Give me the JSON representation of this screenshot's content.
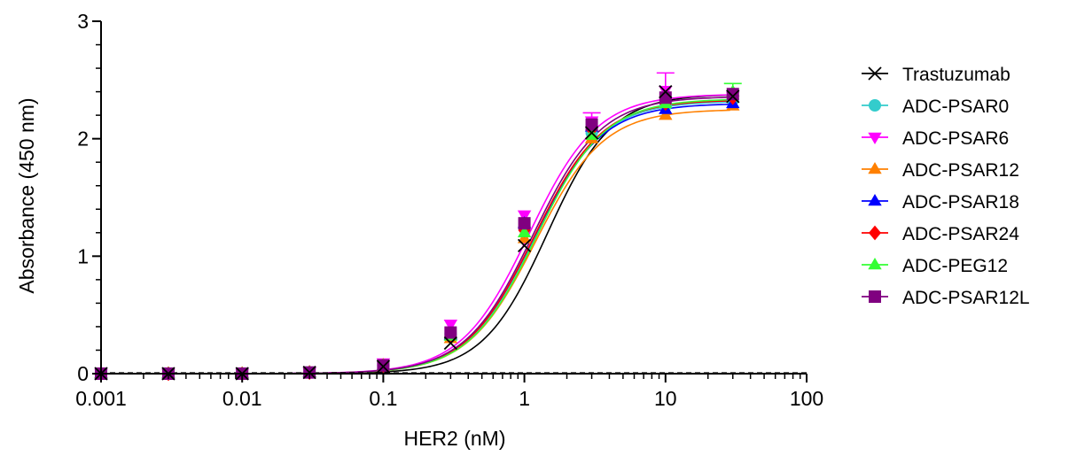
{
  "chart_data": {
    "type": "scatter",
    "title": "",
    "xlabel": "HER2 (nM)",
    "ylabel": "Absorbance (450 nm)",
    "x_scale": "log",
    "xlim": [
      0.001,
      100
    ],
    "ylim": [
      0,
      3
    ],
    "x_ticks": [
      {
        "value": 0.001,
        "label": "0.001"
      },
      {
        "value": 0.01,
        "label": "0.01"
      },
      {
        "value": 0.1,
        "label": "0.1"
      },
      {
        "value": 1,
        "label": "1"
      },
      {
        "value": 10,
        "label": "10"
      },
      {
        "value": 100,
        "label": "100"
      }
    ],
    "y_ticks": [
      {
        "value": 0,
        "label": "0"
      },
      {
        "value": 1,
        "label": "1"
      },
      {
        "value": 2,
        "label": "2"
      },
      {
        "value": 3,
        "label": "3"
      }
    ],
    "grid": false,
    "legend_position": "right",
    "x": [
      0.001,
      0.003,
      0.01,
      0.03,
      0.1,
      0.3,
      1,
      3,
      10,
      30
    ],
    "series": [
      {
        "name": "Trastuzumab",
        "color": "#000000",
        "marker": "x",
        "values": [
          0,
          0,
          0,
          0.01,
          0.06,
          0.26,
          1.09,
          2.05,
          2.4,
          2.36
        ],
        "fit": {
          "top": 2.38,
          "ec50": 1.45,
          "hill": 1.9
        }
      },
      {
        "name": "ADC-PSAR0",
        "color": "#33CCCC",
        "marker": "circle",
        "values": [
          0,
          0,
          0,
          0.01,
          0.07,
          0.34,
          1.24,
          2.05,
          2.28,
          2.33
        ],
        "fit": {
          "top": 2.32,
          "ec50": 1.18,
          "hill": 1.8
        }
      },
      {
        "name": "ADC-PSAR6",
        "color": "#FF00FF",
        "marker": "triangle-down",
        "values": [
          0,
          0,
          0,
          0.01,
          0.09,
          0.42,
          1.35,
          2.15,
          2.41,
          2.36
        ],
        "fit": {
          "top": 2.38,
          "ec50": 1.08,
          "hill": 1.8
        }
      },
      {
        "name": "ADC-PSAR12",
        "color": "#FF8000",
        "marker": "triangle-up",
        "values": [
          0,
          0,
          0,
          0.01,
          0.06,
          0.3,
          1.15,
          2.0,
          2.2,
          2.28
        ],
        "fit": {
          "top": 2.25,
          "ec50": 1.2,
          "hill": 1.8
        }
      },
      {
        "name": "ADC-PSAR18",
        "color": "#0000FF",
        "marker": "triangle-up",
        "values": [
          0,
          0,
          0,
          0.01,
          0.07,
          0.33,
          1.28,
          2.1,
          2.25,
          2.3
        ],
        "fit": {
          "top": 2.3,
          "ec50": 1.16,
          "hill": 1.8
        }
      },
      {
        "name": "ADC-PSAR24",
        "color": "#FF0000",
        "marker": "diamond",
        "values": [
          0,
          0,
          0,
          0.01,
          0.07,
          0.33,
          1.22,
          2.08,
          2.3,
          2.35
        ],
        "fit": {
          "top": 2.33,
          "ec50": 1.17,
          "hill": 1.8
        }
      },
      {
        "name": "ADC-PEG12",
        "color": "#33FF33",
        "marker": "triangle-up",
        "values": [
          0,
          0,
          0,
          0.01,
          0.07,
          0.32,
          1.2,
          2.03,
          2.3,
          2.4
        ],
        "fit": {
          "top": 2.34,
          "ec50": 1.22,
          "hill": 1.8
        }
      },
      {
        "name": "ADC-PSAR12L",
        "color": "#800080",
        "marker": "square",
        "values": [
          0,
          0,
          0,
          0.01,
          0.07,
          0.35,
          1.28,
          2.12,
          2.35,
          2.38
        ],
        "fit": {
          "top": 2.36,
          "ec50": 1.15,
          "hill": 1.8
        }
      }
    ],
    "error_bars_upper": [
      {
        "series": "ADC-PSAR6",
        "x": 10,
        "y": 2.56
      },
      {
        "series": "ADC-PEG12",
        "x": 30,
        "y": 2.47
      },
      {
        "series": "ADC-PSAR6",
        "x": 3,
        "y": 2.22
      }
    ]
  }
}
